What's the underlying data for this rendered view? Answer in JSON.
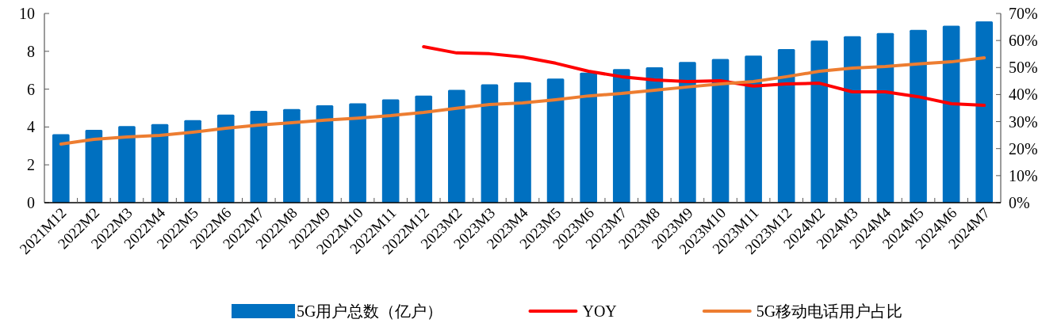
{
  "chart_data": {
    "type": "bar",
    "categories": [
      "2021M12",
      "2022M2",
      "2022M3",
      "2022M4",
      "2022M5",
      "2022M6",
      "2022M7",
      "2022M8",
      "2022M9",
      "2022M10",
      "2022M11",
      "2022M12",
      "2023M2",
      "2023M3",
      "2023M4",
      "2023M5",
      "2023M6",
      "2023M7",
      "2023M8",
      "2023M9",
      "2023M10",
      "2023M11",
      "2023M12",
      "2024M2",
      "2024M3",
      "2024M4",
      "2024M5",
      "2024M6",
      "2024M7"
    ],
    "series": [
      {
        "name": "5G用户总数（亿户）",
        "color": "#0070c0",
        "values": [
          3.62,
          3.85,
          4.05,
          4.15,
          4.36,
          4.65,
          4.85,
          4.95,
          5.15,
          5.25,
          5.46,
          5.66,
          5.96,
          6.26,
          6.36,
          6.56,
          6.87,
          7.06,
          7.16,
          7.44,
          7.59,
          7.77,
          8.12,
          8.57,
          8.8,
          8.96,
          9.13,
          9.35,
          9.58
        ]
      },
      {
        "name": "YOY",
        "type": "line",
        "axis": "y2",
        "color": "#ff0000",
        "values": [
          null,
          null,
          null,
          null,
          null,
          null,
          null,
          null,
          null,
          null,
          null,
          57.7,
          55.4,
          55.1,
          53.9,
          51.6,
          48.6,
          46.6,
          45.4,
          44.8,
          45.1,
          43.1,
          43.9,
          44.2,
          41.0,
          41.0,
          39.2,
          36.6,
          36.0
        ]
      },
      {
        "name": "5G移动电话用户占比",
        "type": "line",
        "axis": "y2",
        "color": "#ed7d31",
        "values": [
          21.7,
          23.4,
          24.3,
          24.9,
          26.1,
          27.5,
          28.7,
          29.6,
          30.5,
          31.3,
          32.2,
          33.4,
          34.9,
          36.3,
          36.9,
          38.1,
          39.5,
          40.4,
          41.6,
          42.8,
          43.9,
          44.8,
          46.6,
          48.6,
          49.8,
          50.4,
          51.3,
          52.1,
          53.6
        ]
      }
    ],
    "ylim": [
      0,
      10
    ],
    "yticks": [
      0,
      2,
      4,
      6,
      8,
      10
    ],
    "y2lim": [
      0,
      70
    ],
    "y2ticks": [
      {
        "value": 0,
        "label": "0%"
      },
      {
        "value": 10,
        "label": "10%"
      },
      {
        "value": 20,
        "label": "20%"
      },
      {
        "value": 30,
        "label": "30%"
      },
      {
        "value": 40,
        "label": "40%"
      },
      {
        "value": 50,
        "label": "50%"
      },
      {
        "value": 60,
        "label": "60%"
      },
      {
        "value": 70,
        "label": "70%"
      }
    ],
    "grid": false,
    "legend": "bottom"
  }
}
